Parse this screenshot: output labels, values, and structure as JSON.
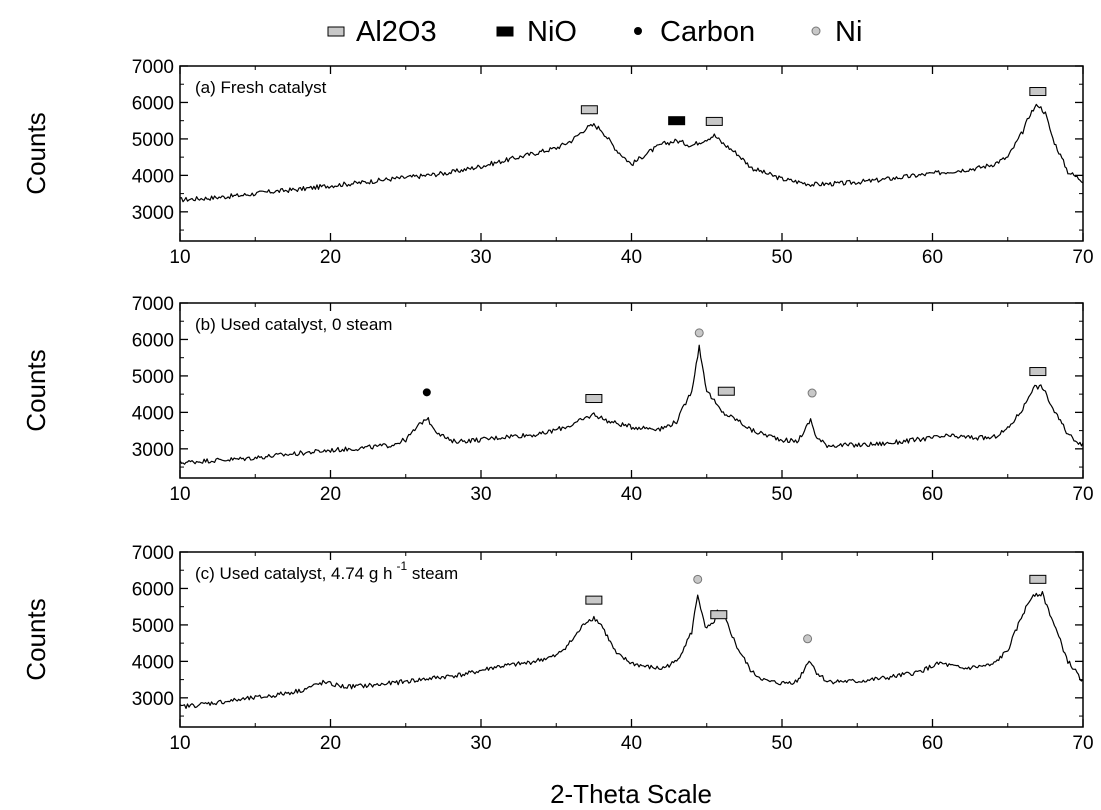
{
  "chart_data": {
    "type": "line",
    "xlabel": "2-Theta Scale",
    "ylabel": "Counts",
    "legend": {
      "placement": "top-center",
      "entries": [
        {
          "label": "Al2O3",
          "marker": "gray-rectangle"
        },
        {
          "label": "NiO",
          "marker": "black-rectangle"
        },
        {
          "label": "Carbon",
          "marker": "black-dot"
        },
        {
          "label": "Ni",
          "marker": "gray-dot"
        }
      ]
    },
    "colors": {
      "line": "#000000",
      "al2o3": "#c8c8c8",
      "nio": "#000000",
      "carbon": "#000000",
      "ni": "#c8c8c8"
    },
    "panels": [
      {
        "label": "(a) Fresh catalyst",
        "xlim": [
          10,
          70
        ],
        "ylim": [
          2200,
          7000
        ],
        "xticks": [
          "10",
          "20",
          "30",
          "40",
          "50",
          "60",
          "70"
        ],
        "yticks": [
          "3000",
          "4000",
          "5000",
          "6000",
          "7000"
        ],
        "points": [
          [
            10,
            3330
          ],
          [
            12,
            3380
          ],
          [
            14,
            3450
          ],
          [
            16,
            3550
          ],
          [
            18,
            3620
          ],
          [
            20,
            3720
          ],
          [
            22,
            3800
          ],
          [
            24,
            3900
          ],
          [
            26,
            3980
          ],
          [
            28,
            4080
          ],
          [
            30,
            4250
          ],
          [
            32,
            4450
          ],
          [
            34,
            4650
          ],
          [
            35,
            4750
          ],
          [
            36,
            4950
          ],
          [
            37,
            5300
          ],
          [
            37.5,
            5380
          ],
          [
            38,
            5250
          ],
          [
            39,
            4700
          ],
          [
            40,
            4300
          ],
          [
            41,
            4600
          ],
          [
            42,
            4850
          ],
          [
            43,
            4950
          ],
          [
            44,
            4820
          ],
          [
            45,
            5000
          ],
          [
            45.5,
            5100
          ],
          [
            46,
            4900
          ],
          [
            47,
            4600
          ],
          [
            48,
            4200
          ],
          [
            50,
            3900
          ],
          [
            52,
            3750
          ],
          [
            54,
            3780
          ],
          [
            56,
            3850
          ],
          [
            58,
            3950
          ],
          [
            60,
            4050
          ],
          [
            62,
            4150
          ],
          [
            63,
            4200
          ],
          [
            64,
            4300
          ],
          [
            65,
            4500
          ],
          [
            66,
            5200
          ],
          [
            66.5,
            5700
          ],
          [
            67,
            5950
          ],
          [
            67.5,
            5700
          ],
          [
            68,
            5000
          ],
          [
            69,
            4100
          ],
          [
            70,
            3850
          ]
        ],
        "markers": [
          {
            "phase": "Al2O3",
            "x": 37.2,
            "y": 5800
          },
          {
            "phase": "NiO",
            "x": 43.0,
            "y": 5500
          },
          {
            "phase": "Al2O3",
            "x": 45.5,
            "y": 5480
          },
          {
            "phase": "Al2O3",
            "x": 67.0,
            "y": 6300
          }
        ]
      },
      {
        "label": "(b) Used catalyst, 0 steam",
        "xlim": [
          10,
          70
        ],
        "ylim": [
          2200,
          7000
        ],
        "xticks": [
          "10",
          "20",
          "30",
          "40",
          "50",
          "60",
          "70"
        ],
        "yticks": [
          "3000",
          "4000",
          "5000",
          "6000",
          "7000"
        ],
        "points": [
          [
            10,
            2620
          ],
          [
            12,
            2680
          ],
          [
            14,
            2720
          ],
          [
            16,
            2800
          ],
          [
            18,
            2880
          ],
          [
            20,
            2960
          ],
          [
            22,
            3020
          ],
          [
            24,
            3100
          ],
          [
            25,
            3250
          ],
          [
            26,
            3700
          ],
          [
            26.4,
            3850
          ],
          [
            27,
            3500
          ],
          [
            28,
            3200
          ],
          [
            30,
            3250
          ],
          [
            32,
            3350
          ],
          [
            34,
            3400
          ],
          [
            36,
            3650
          ],
          [
            37.5,
            3950
          ],
          [
            38.5,
            3750
          ],
          [
            40,
            3600
          ],
          [
            42,
            3550
          ],
          [
            43,
            3750
          ],
          [
            44,
            4600
          ],
          [
            44.5,
            5800
          ],
          [
            45,
            4600
          ],
          [
            46,
            4000
          ],
          [
            47,
            3800
          ],
          [
            48,
            3500
          ],
          [
            50,
            3250
          ],
          [
            51,
            3200
          ],
          [
            51.5,
            3500
          ],
          [
            51.9,
            3800
          ],
          [
            52.3,
            3300
          ],
          [
            53,
            3100
          ],
          [
            55,
            3100
          ],
          [
            57,
            3150
          ],
          [
            59,
            3250
          ],
          [
            61,
            3350
          ],
          [
            63,
            3300
          ],
          [
            64,
            3300
          ],
          [
            65,
            3550
          ],
          [
            66,
            4100
          ],
          [
            66.7,
            4700
          ],
          [
            67.3,
            4700
          ],
          [
            68,
            4100
          ],
          [
            69,
            3400
          ],
          [
            70,
            3100
          ]
        ],
        "markers": [
          {
            "phase": "Carbon",
            "x": 26.4,
            "y": 4550
          },
          {
            "phase": "Al2O3",
            "x": 37.5,
            "y": 4380
          },
          {
            "phase": "Ni",
            "x": 44.5,
            "y": 6180
          },
          {
            "phase": "Al2O3",
            "x": 46.3,
            "y": 4580
          },
          {
            "phase": "Ni",
            "x": 52.0,
            "y": 4530
          },
          {
            "phase": "Al2O3",
            "x": 67.0,
            "y": 5120
          }
        ]
      },
      {
        "label": "(c) Used catalyst, 4.74 g h",
        "label_superscript": "-1",
        "label_suffix": " steam",
        "xlim": [
          10,
          70
        ],
        "ylim": [
          2200,
          7000
        ],
        "xticks": [
          "10",
          "20",
          "30",
          "40",
          "50",
          "60",
          "70"
        ],
        "yticks": [
          "3000",
          "4000",
          "5000",
          "6000",
          "7000"
        ],
        "points": [
          [
            10,
            2750
          ],
          [
            12,
            2850
          ],
          [
            14,
            2950
          ],
          [
            16,
            3050
          ],
          [
            18,
            3200
          ],
          [
            19.5,
            3420
          ],
          [
            21,
            3300
          ],
          [
            23,
            3350
          ],
          [
            25,
            3450
          ],
          [
            27,
            3550
          ],
          [
            29,
            3650
          ],
          [
            31,
            3850
          ],
          [
            33,
            3950
          ],
          [
            35,
            4150
          ],
          [
            36,
            4550
          ],
          [
            37,
            5100
          ],
          [
            37.5,
            5200
          ],
          [
            38,
            5000
          ],
          [
            39,
            4200
          ],
          [
            40,
            3950
          ],
          [
            41,
            3850
          ],
          [
            42,
            3800
          ],
          [
            43,
            4000
          ],
          [
            44,
            4800
          ],
          [
            44.4,
            5850
          ],
          [
            44.9,
            4900
          ],
          [
            45.4,
            5000
          ],
          [
            45.7,
            5350
          ],
          [
            46.2,
            5200
          ],
          [
            47,
            4400
          ],
          [
            48,
            3700
          ],
          [
            49,
            3450
          ],
          [
            50,
            3400
          ],
          [
            51,
            3450
          ],
          [
            51.5,
            3800
          ],
          [
            51.8,
            4050
          ],
          [
            52.3,
            3700
          ],
          [
            53,
            3450
          ],
          [
            55,
            3450
          ],
          [
            57,
            3550
          ],
          [
            59,
            3700
          ],
          [
            60.5,
            3950
          ],
          [
            62,
            3800
          ],
          [
            64,
            3900
          ],
          [
            65,
            4300
          ],
          [
            66,
            5300
          ],
          [
            66.7,
            5850
          ],
          [
            67.3,
            5850
          ],
          [
            68,
            5100
          ],
          [
            69,
            4000
          ],
          [
            70,
            3450
          ]
        ],
        "markers": [
          {
            "phase": "Al2O3",
            "x": 37.5,
            "y": 5680
          },
          {
            "phase": "Ni",
            "x": 44.4,
            "y": 6250
          },
          {
            "phase": "Al2O3",
            "x": 45.8,
            "y": 5280
          },
          {
            "phase": "Ni",
            "x": 51.7,
            "y": 4620
          },
          {
            "phase": "Al2O3",
            "x": 67.0,
            "y": 6250
          }
        ]
      }
    ]
  }
}
